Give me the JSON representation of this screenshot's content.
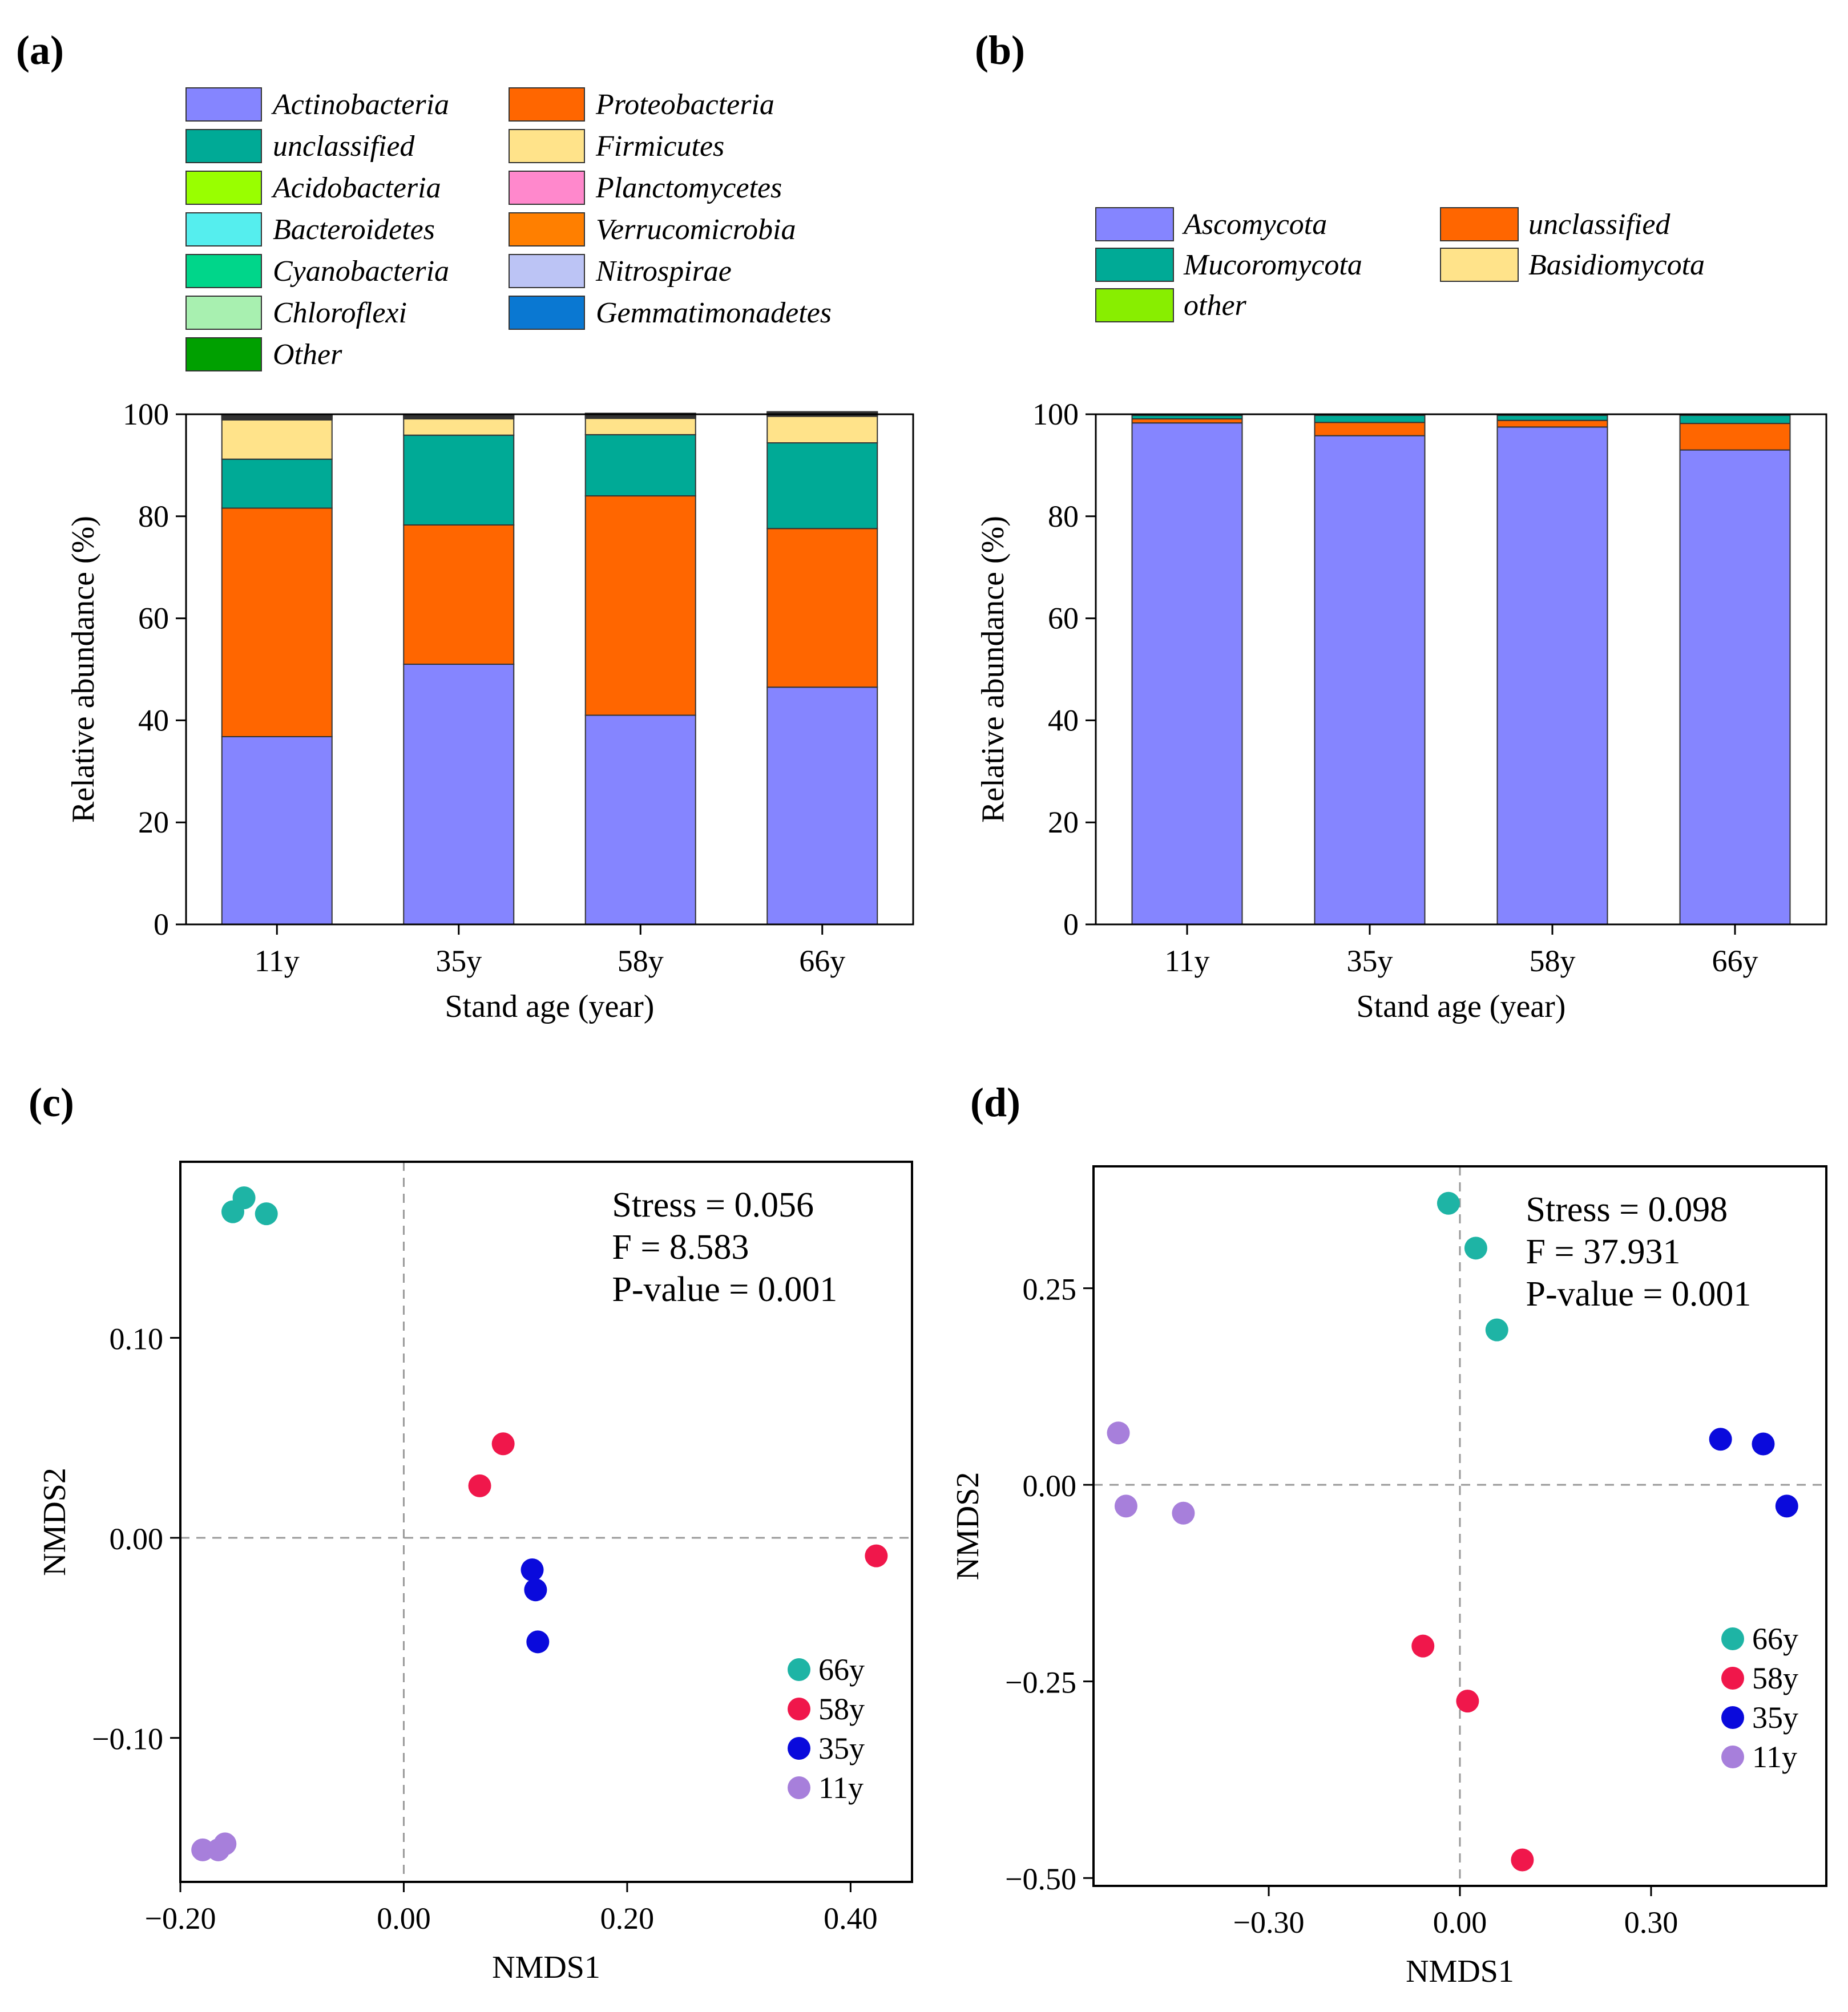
{
  "chart_data": [
    {
      "panel": "(a)",
      "type": "bar",
      "stacked": true,
      "xlabel": "Stand age (year)",
      "ylabel": "Relative abundance (%)",
      "ylim": [
        0,
        100
      ],
      "yticks": [
        "0",
        "20",
        "40",
        "60",
        "80",
        "100"
      ],
      "categories": [
        "11y",
        "35y",
        "58y",
        "66y"
      ],
      "legend_columns": 2,
      "legend": [
        {
          "name": "Actinobacteria",
          "color": "#8585FF"
        },
        {
          "name": "Proteobacteria",
          "color": "#FF6600"
        },
        {
          "name": "unclassified",
          "color": "#00AA96"
        },
        {
          "name": "Firmicutes",
          "color": "#FFE38A"
        },
        {
          "name": "Acidobacteria",
          "color": "#99FF00"
        },
        {
          "name": "Planctomycetes",
          "color": "#FF88CC"
        },
        {
          "name": "Bacteroidetes",
          "color": "#55EEEE"
        },
        {
          "name": "Verrucomicrobia",
          "color": "#FF7F00"
        },
        {
          "name": "Cyanobacteria",
          "color": "#00D68A"
        },
        {
          "name": "Nitrospirae",
          "color": "#BCC4F5"
        },
        {
          "name": "Chloroflexi",
          "color": "#A8F0B0"
        },
        {
          "name": "Gemmatimonadetes",
          "color": "#0A78D2"
        },
        {
          "name": "Other",
          "color": "#00A000"
        }
      ],
      "series": [
        {
          "name": "Actinobacteria",
          "color": "#8585FF",
          "values": [
            36.8,
            51.0,
            41.0,
            46.5
          ]
        },
        {
          "name": "Proteobacteria",
          "color": "#FF6600",
          "values": [
            44.8,
            27.3,
            43.0,
            31.1
          ]
        },
        {
          "name": "unclassified",
          "color": "#00AA96",
          "values": [
            9.6,
            17.6,
            12.0,
            16.8
          ]
        },
        {
          "name": "Firmicutes",
          "color": "#FFE38A",
          "values": [
            7.7,
            3.2,
            3.2,
            5.2
          ]
        },
        {
          "name": "Acidobacteria",
          "color": "#99FF00",
          "values": [
            0.2,
            0.1,
            0.1,
            0.1
          ]
        },
        {
          "name": "Planctomycetes",
          "color": "#FF88CC",
          "values": [
            0.1,
            0.1,
            0.1,
            0.1
          ]
        },
        {
          "name": "Bacteroidetes",
          "color": "#55EEEE",
          "values": [
            0.1,
            0.1,
            0.1,
            0.1
          ]
        },
        {
          "name": "Verrucomicrobia",
          "color": "#FF7F00",
          "values": [
            0.1,
            0.1,
            0.1,
            0.1
          ]
        },
        {
          "name": "Cyanobacteria",
          "color": "#00D68A",
          "values": [
            0.1,
            0.1,
            0.1,
            0.1
          ]
        },
        {
          "name": "Nitrospirae",
          "color": "#BCC4F5",
          "values": [
            0.1,
            0.1,
            0.1,
            0.1
          ]
        },
        {
          "name": "Chloroflexi",
          "color": "#A8F0B0",
          "values": [
            0.1,
            0.1,
            0.1,
            0.1
          ]
        },
        {
          "name": "Gemmatimonadetes",
          "color": "#0A78D2",
          "values": [
            0.1,
            0.1,
            0.1,
            0.1
          ]
        },
        {
          "name": "Other",
          "color": "#00A000",
          "values": [
            0.2,
            0.1,
            0.2,
            0.1
          ]
        }
      ]
    },
    {
      "panel": "(b)",
      "type": "bar",
      "stacked": true,
      "xlabel": "Stand age (year)",
      "ylabel": "Relative abundance (%)",
      "ylim": [
        0,
        100
      ],
      "yticks": [
        "0",
        "20",
        "40",
        "60",
        "80",
        "100"
      ],
      "categories": [
        "11y",
        "35y",
        "58y",
        "66y"
      ],
      "legend_columns": 2,
      "legend": [
        {
          "name": "Ascomycota",
          "color": "#8585FF"
        },
        {
          "name": "unclassified",
          "color": "#FF6600"
        },
        {
          "name": "Mucoromycota",
          "color": "#00AA96"
        },
        {
          "name": "Basidiomycota",
          "color": "#FFE38A"
        },
        {
          "name": "other",
          "color": "#88EE00"
        }
      ],
      "series": [
        {
          "name": "Ascomycota",
          "color": "#8585FF",
          "values": [
            98.3,
            95.8,
            97.5,
            93.0
          ]
        },
        {
          "name": "unclassified",
          "color": "#FF6600",
          "values": [
            0.8,
            2.6,
            1.3,
            5.2
          ]
        },
        {
          "name": "Mucoromycota",
          "color": "#00AA96",
          "values": [
            0.7,
            1.4,
            1.0,
            1.6
          ]
        },
        {
          "name": "Basidiomycota",
          "color": "#FFE38A",
          "values": [
            0.1,
            0.1,
            0.1,
            0.1
          ]
        },
        {
          "name": "other",
          "color": "#88EE00",
          "values": [
            0.1,
            0.1,
            0.1,
            0.1
          ]
        }
      ]
    },
    {
      "panel": "(c)",
      "type": "scatter",
      "xlabel": "NMDS1",
      "ylabel": "NMDS2",
      "xlim": [
        -0.2,
        0.455
      ],
      "ylim": [
        -0.172,
        0.188
      ],
      "xticks": [
        {
          "value": -0.2,
          "label": "−0.20"
        },
        {
          "value": 0.0,
          "label": "0.00"
        },
        {
          "value": 0.2,
          "label": "0.20"
        },
        {
          "value": 0.4,
          "label": "0.40"
        }
      ],
      "yticks": [
        {
          "value": -0.1,
          "label": "−0.10"
        },
        {
          "value": 0.0,
          "label": "0.00"
        },
        {
          "value": 0.1,
          "label": "0.10"
        }
      ],
      "annotations": [
        "Stress = 0.056",
        "F = 8.583",
        "P-value = 0.001"
      ],
      "series": [
        {
          "name": "66y",
          "color": "#1EB4A5",
          "x": [
            -0.153,
            -0.143,
            -0.123
          ],
          "y": [
            0.163,
            0.17,
            0.162
          ]
        },
        {
          "name": "58y",
          "color": "#F0174B",
          "x": [
            0.089,
            0.068,
            0.423
          ],
          "y": [
            0.047,
            0.026,
            -0.009
          ]
        },
        {
          "name": "35y",
          "color": "#0A0ADC",
          "x": [
            0.115,
            0.118,
            0.12
          ],
          "y": [
            -0.016,
            -0.026,
            -0.052
          ]
        },
        {
          "name": "11y",
          "color": "#A77FDB",
          "x": [
            -0.18,
            -0.166,
            -0.16
          ],
          "y": [
            -0.156,
            -0.156,
            -0.153
          ]
        }
      ]
    },
    {
      "panel": "(d)",
      "type": "scatter",
      "xlabel": "NMDS1",
      "ylabel": "NMDS2",
      "xlim": [
        -0.575,
        0.575
      ],
      "ylim": [
        -0.51,
        0.405
      ],
      "xticks": [
        {
          "value": -0.3,
          "label": "−0.30"
        },
        {
          "value": 0.0,
          "label": "0.00"
        },
        {
          "value": 0.3,
          "label": "0.30"
        }
      ],
      "yticks": [
        {
          "value": -0.5,
          "label": "−0.50"
        },
        {
          "value": -0.25,
          "label": "−0.25"
        },
        {
          "value": 0.0,
          "label": "0.00"
        },
        {
          "value": 0.25,
          "label": "0.25"
        }
      ],
      "annotations": [
        "Stress = 0.098",
        "F = 37.931",
        "P-value = 0.001"
      ],
      "series": [
        {
          "name": "66y",
          "color": "#1EB4A5",
          "x": [
            -0.018,
            0.025,
            0.058
          ],
          "y": [
            0.358,
            0.301,
            0.197
          ]
        },
        {
          "name": "58y",
          "color": "#F0174B",
          "x": [
            -0.058,
            0.012,
            0.098
          ],
          "y": [
            -0.205,
            -0.275,
            -0.477
          ]
        },
        {
          "name": "35y",
          "color": "#0A0ADC",
          "x": [
            0.409,
            0.476,
            0.513
          ],
          "y": [
            0.058,
            0.052,
            -0.027
          ]
        },
        {
          "name": "11y",
          "color": "#A77FDB",
          "x": [
            -0.536,
            -0.524,
            -0.434
          ],
          "y": [
            0.066,
            -0.027,
            -0.036
          ]
        }
      ]
    }
  ]
}
